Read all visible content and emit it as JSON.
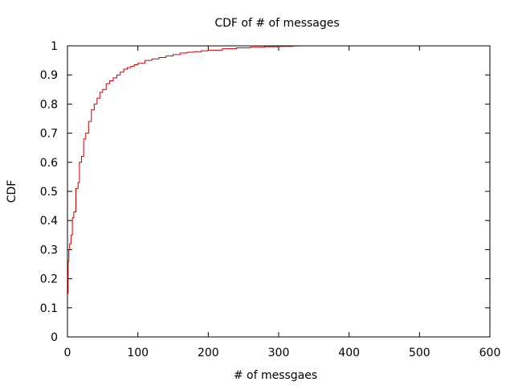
{
  "chart_data": {
    "type": "line",
    "title": "CDF of # of messages",
    "xlabel": "# of messgaes",
    "ylabel": "CDF",
    "xlim": [
      0,
      600
    ],
    "ylim": [
      0,
      1
    ],
    "xticks": [
      0,
      100,
      200,
      300,
      400,
      500,
      600
    ],
    "yticks": [
      0,
      0.1,
      0.2,
      0.3,
      0.4,
      0.5,
      0.6,
      0.7,
      0.8,
      0.9,
      1
    ],
    "grid": false,
    "legend": "none",
    "line_color": "#cc0000",
    "series": [
      {
        "x": [
          0,
          1,
          2,
          3,
          5,
          7,
          9,
          12,
          15,
          17,
          20,
          23,
          26,
          30,
          34,
          38,
          42,
          46,
          50,
          55,
          60,
          65,
          70,
          75,
          80,
          85,
          90,
          95,
          100,
          110,
          120,
          130,
          140,
          150,
          160,
          170,
          180,
          190,
          200,
          220,
          240,
          260,
          280,
          300,
          320,
          327
        ],
        "y": [
          0.15,
          0.26,
          0.3,
          0.32,
          0.35,
          0.41,
          0.43,
          0.51,
          0.53,
          0.6,
          0.62,
          0.68,
          0.7,
          0.74,
          0.78,
          0.8,
          0.82,
          0.84,
          0.85,
          0.87,
          0.88,
          0.89,
          0.9,
          0.91,
          0.92,
          0.925,
          0.93,
          0.935,
          0.94,
          0.95,
          0.955,
          0.96,
          0.965,
          0.97,
          0.975,
          0.978,
          0.98,
          0.983,
          0.985,
          0.99,
          0.993,
          0.995,
          0.997,
          0.998,
          0.999,
          1.0
        ]
      }
    ]
  }
}
